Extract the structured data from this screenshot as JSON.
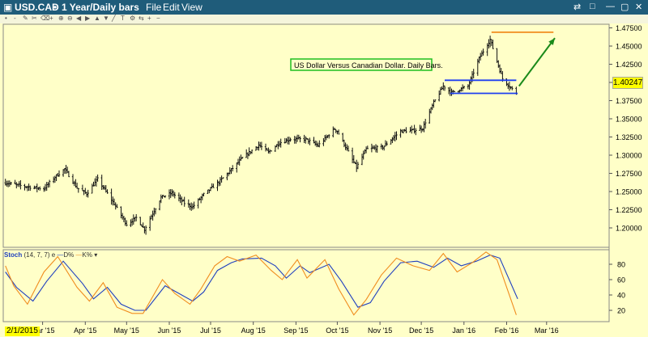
{
  "window": {
    "title": "USD.CAD",
    "period": "1 Year/Daily bars",
    "menu": [
      "File",
      "Edit",
      "View"
    ]
  },
  "toolbar_icons": [
    "bullet-icon",
    "dash-icon",
    "pencil-icon",
    "scissors-icon",
    "brush-icon",
    "crosshair-icon",
    "zoom-in-icon",
    "zoom-out-icon",
    "arrow-left-icon",
    "arrow-right-icon",
    "arrow-up-icon",
    "arrow-down-icon",
    "line-tool-icon",
    "text-tool-icon",
    "gear-icon",
    "arrow-swap-icon",
    "plus-icon",
    "minus-icon"
  ],
  "colors": {
    "background": "#ffffc8",
    "bars": "#111111",
    "blue_line": "#1e3ff0",
    "orange_line": "#f08c1e",
    "arrow": "#1a8a1a",
    "d_line": "#1f3fbf",
    "k_line": "#f08c1e",
    "annotation_border": "#1fbf1f"
  },
  "chart_data": [
    {
      "type": "ohlc",
      "title": "USD.CAD",
      "annotation": "US Dollar Versus Canadian Dollar.  Daily Bars.",
      "current_price": "1.40247",
      "start_date": "2/1/2015",
      "x_tick_labels": [
        "Mar '15",
        "Apr '15",
        "May '15",
        "Jun '15",
        "Jul '15",
        "Aug '15",
        "Sep '15",
        "Oct '15",
        "Nov '15",
        "Dec '15",
        "Jan '16",
        "Feb '16",
        "Mar '16"
      ],
      "y_tick_labels": [
        "1.20000",
        "1.22500",
        "1.25000",
        "1.27500",
        "1.30000",
        "1.32500",
        "1.35000",
        "1.37500",
        "1.40000",
        "1.42500",
        "1.45000",
        "1.47500"
      ],
      "ylim": [
        1.18,
        1.49
      ],
      "anchors": [
        [
          "2015-02-02",
          1.262
        ],
        [
          "2015-02-16",
          1.257
        ],
        [
          "2015-03-02",
          1.254
        ],
        [
          "2015-03-10",
          1.27
        ],
        [
          "2015-03-17",
          1.281
        ],
        [
          "2015-03-26",
          1.255
        ],
        [
          "2015-04-02",
          1.247
        ],
        [
          "2015-04-10",
          1.267
        ],
        [
          "2015-04-22",
          1.233
        ],
        [
          "2015-05-01",
          1.205
        ],
        [
          "2015-05-08",
          1.214
        ],
        [
          "2015-05-14",
          1.198
        ],
        [
          "2015-05-26",
          1.242
        ],
        [
          "2015-06-03",
          1.248
        ],
        [
          "2015-06-12",
          1.234
        ],
        [
          "2015-06-18",
          1.229
        ],
        [
          "2015-06-26",
          1.246
        ],
        [
          "2015-07-07",
          1.263
        ],
        [
          "2015-07-14",
          1.276
        ],
        [
          "2015-07-24",
          1.296
        ],
        [
          "2015-08-05",
          1.314
        ],
        [
          "2015-08-12",
          1.304
        ],
        [
          "2015-08-20",
          1.317
        ],
        [
          "2015-08-28",
          1.322
        ],
        [
          "2015-09-08",
          1.322
        ],
        [
          "2015-09-17",
          1.313
        ],
        [
          "2015-09-29",
          1.336
        ],
        [
          "2015-10-01",
          1.333
        ],
        [
          "2015-10-15",
          1.283
        ],
        [
          "2015-10-22",
          1.308
        ],
        [
          "2015-11-03",
          1.311
        ],
        [
          "2015-11-16",
          1.333
        ],
        [
          "2015-11-25",
          1.334
        ],
        [
          "2015-12-02",
          1.337
        ],
        [
          "2015-12-10",
          1.372
        ],
        [
          "2015-12-17",
          1.395
        ],
        [
          "2015-12-23",
          1.386
        ],
        [
          "2016-01-04",
          1.395
        ],
        [
          "2016-01-12",
          1.433
        ],
        [
          "2016-01-20",
          1.459
        ],
        [
          "2016-01-29",
          1.405
        ],
        [
          "2016-02-08",
          1.385
        ]
      ],
      "ohlc": [],
      "annotations": {
        "blue_top": {
          "from": "2015-12-18",
          "to": "2016-02-08",
          "y": 1.403
        },
        "blue_bottom": {
          "from": "2015-12-22",
          "to": "2016-02-09",
          "y": 1.385
        },
        "orange": {
          "from": "2016-01-21",
          "to": "2016-03-06",
          "y": 1.469
        },
        "arrow": {
          "from": [
            "2016-02-10",
            1.395
          ],
          "to": [
            "2016-03-07",
            1.461
          ]
        }
      }
    },
    {
      "type": "line",
      "title": "Stoch",
      "params": "(14, 7, 7)",
      "series_labels": [
        "D%",
        "K%"
      ],
      "y_tick_labels": [
        "20",
        "40",
        "60",
        "80"
      ],
      "ylim": [
        0,
        100
      ],
      "series": [
        {
          "name": "D%",
          "color": "#1f3fbf",
          "points": [
            [
              "2015-02-02",
              70
            ],
            [
              "2015-02-10",
              50
            ],
            [
              "2015-02-22",
              32
            ],
            [
              "2015-03-04",
              58
            ],
            [
              "2015-03-16",
              84
            ],
            [
              "2015-03-30",
              55
            ],
            [
              "2015-04-07",
              35
            ],
            [
              "2015-04-17",
              50
            ],
            [
              "2015-04-27",
              28
            ],
            [
              "2015-05-07",
              20
            ],
            [
              "2015-05-15",
              20
            ],
            [
              "2015-05-29",
              52
            ],
            [
              "2015-06-08",
              42
            ],
            [
              "2015-06-18",
              32
            ],
            [
              "2015-06-26",
              44
            ],
            [
              "2015-07-06",
              72
            ],
            [
              "2015-07-16",
              82
            ],
            [
              "2015-07-24",
              87
            ],
            [
              "2015-08-07",
              88
            ],
            [
              "2015-08-17",
              78
            ],
            [
              "2015-08-25",
              62
            ],
            [
              "2015-09-04",
              78
            ],
            [
              "2015-09-11",
              69
            ],
            [
              "2015-09-25",
              80
            ],
            [
              "2015-10-04",
              58
            ],
            [
              "2015-10-16",
              24
            ],
            [
              "2015-10-25",
              30
            ],
            [
              "2015-11-04",
              58
            ],
            [
              "2015-11-16",
              82
            ],
            [
              "2015-11-28",
              84
            ],
            [
              "2015-12-10",
              76
            ],
            [
              "2015-12-20",
              88
            ],
            [
              "2015-12-30",
              78
            ],
            [
              "2016-01-10",
              84
            ],
            [
              "2016-01-20",
              92
            ],
            [
              "2016-01-27",
              88
            ],
            [
              "2016-02-09",
              35
            ]
          ]
        },
        {
          "name": "K%",
          "color": "#f08c1e",
          "points": [
            [
              "2015-02-02",
              78
            ],
            [
              "2015-02-08",
              52
            ],
            [
              "2015-02-18",
              28
            ],
            [
              "2015-03-02",
              70
            ],
            [
              "2015-03-12",
              90
            ],
            [
              "2015-03-26",
              50
            ],
            [
              "2015-04-04",
              32
            ],
            [
              "2015-04-14",
              56
            ],
            [
              "2015-04-24",
              24
            ],
            [
              "2015-05-05",
              16
            ],
            [
              "2015-05-13",
              16
            ],
            [
              "2015-05-27",
              60
            ],
            [
              "2015-06-05",
              42
            ],
            [
              "2015-06-16",
              28
            ],
            [
              "2015-06-24",
              48
            ],
            [
              "2015-07-04",
              78
            ],
            [
              "2015-07-13",
              90
            ],
            [
              "2015-07-22",
              84
            ],
            [
              "2015-08-03",
              92
            ],
            [
              "2015-08-14",
              72
            ],
            [
              "2015-08-22",
              60
            ],
            [
              "2015-09-02",
              86
            ],
            [
              "2015-09-09",
              62
            ],
            [
              "2015-09-22",
              86
            ],
            [
              "2015-10-02",
              48
            ],
            [
              "2015-10-13",
              14
            ],
            [
              "2015-10-22",
              34
            ],
            [
              "2015-11-02",
              66
            ],
            [
              "2015-11-13",
              88
            ],
            [
              "2015-11-25",
              78
            ],
            [
              "2015-12-07",
              72
            ],
            [
              "2015-12-17",
              94
            ],
            [
              "2015-12-27",
              70
            ],
            [
              "2016-01-07",
              82
            ],
            [
              "2016-01-17",
              96
            ],
            [
              "2016-01-25",
              86
            ],
            [
              "2016-02-08",
              14
            ]
          ]
        }
      ]
    }
  ]
}
